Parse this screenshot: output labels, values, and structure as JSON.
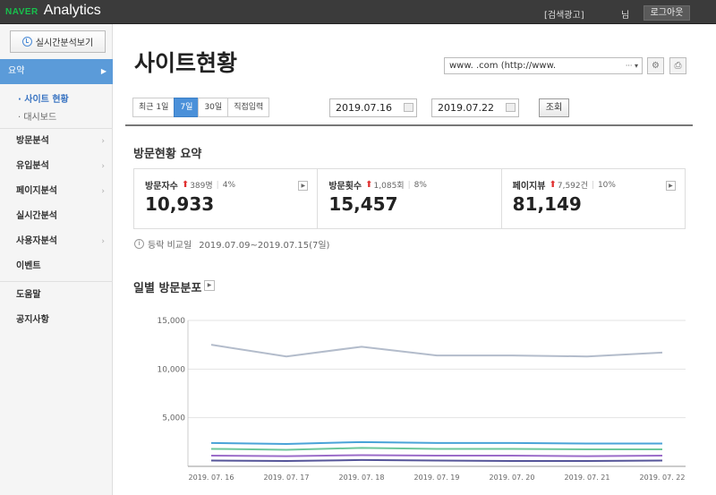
{
  "topbar": {
    "brand": "NAVER",
    "app": "Analytics",
    "ad_link": "[검색광고]",
    "user": "님",
    "logout": "로그아웃"
  },
  "sidebar": {
    "realtime_button": "실시간분석보기",
    "active_menu": "요약",
    "sub_items": [
      "· 사이트 현황",
      "· 대시보드"
    ],
    "menu_items": [
      "방문분석",
      "유입분석",
      "페이지분석",
      "실시간분석",
      "사용자분석",
      "이벤트",
      "도움말",
      "공지사항"
    ]
  },
  "page": {
    "title": "사이트현황",
    "site_select": "www.            .com (http://www.",
    "periods": [
      "최근 1일",
      "7일",
      "30일",
      "직접입력"
    ],
    "active_period": "7일",
    "date_from": "2019.07.16",
    "date_to": "2019.07.22",
    "date_sep": "-",
    "query_button": "조회"
  },
  "summary": {
    "title": "방문현황 요약",
    "cards": [
      {
        "label": "방문자수",
        "delta": "389명",
        "pct": "4%",
        "value": "10,933"
      },
      {
        "label": "방문횟수",
        "delta": "1,085회",
        "pct": "8%",
        "value": "15,457"
      },
      {
        "label": "페이지뷰",
        "delta": "7,592건",
        "pct": "10%",
        "value": "81,149"
      }
    ],
    "compare_label": "등락 비교일",
    "compare_range": "2019.07.09~2019.07.15(7일)"
  },
  "chart_title": "일별 방문분포",
  "chart_data": {
    "type": "line",
    "categories": [
      "2019. 07. 16",
      "2019. 07. 17",
      "2019. 07. 18",
      "2019. 07. 19",
      "2019. 07. 20",
      "2019. 07. 21",
      "2019. 07. 22"
    ],
    "y_ticks": [
      "15,000",
      "10,000",
      "5,000"
    ],
    "ylim": [
      0,
      15000
    ],
    "series": [
      {
        "color": "#b3bccb",
        "values": [
          12500,
          11300,
          12300,
          11400,
          11400,
          11300,
          11700
        ]
      },
      {
        "color": "#4aa3d8",
        "values": [
          2400,
          2300,
          2500,
          2400,
          2400,
          2350,
          2350
        ]
      },
      {
        "color": "#6dc79c",
        "values": [
          1800,
          1700,
          1900,
          1800,
          1800,
          1750,
          1750
        ]
      },
      {
        "color": "#9b6cc9",
        "values": [
          1100,
          1050,
          1150,
          1100,
          1100,
          1050,
          1100
        ]
      },
      {
        "color": "#555599",
        "values": [
          600,
          550,
          650,
          600,
          550,
          550,
          600
        ]
      }
    ],
    "grid": true
  }
}
